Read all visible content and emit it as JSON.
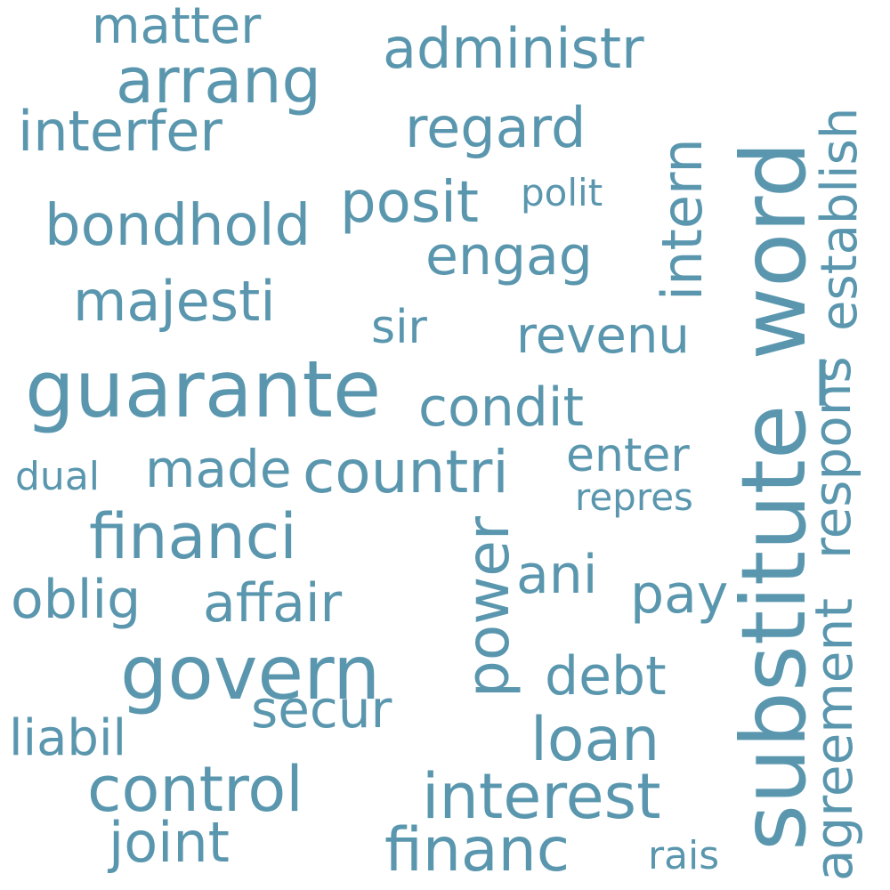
{
  "palette": {
    "word_color": "#5a97ae",
    "background": "#ffffff"
  },
  "words": {
    "matter": "matter",
    "arrang": "arrang",
    "administr": "administr",
    "interfer": "interfer",
    "regard": "regard",
    "intern": "intern",
    "substitute_word": "substitute_word",
    "establish": "establish",
    "bondhold": "bondhold",
    "posit": "posit",
    "polit": "polit",
    "engag": "engag",
    "majesti": "majesti",
    "sir": "sir",
    "revenu": "revenu",
    "guarante": "guarante",
    "condit": "condit",
    "respons": "respons",
    "dual": "dual",
    "made": "made",
    "countri": "countri",
    "enter": "enter",
    "repres": "repres",
    "financi": "financi",
    "power": "power",
    "ani": "ani",
    "oblig": "oblig",
    "affair": "affair",
    "pay": "pay",
    "agreement": "agreement",
    "govern": "govern",
    "debt": "debt",
    "secur": "secur",
    "liabil": "liabil",
    "loan": "loan",
    "control": "control",
    "interest": "interest",
    "joint": "joint",
    "financ": "financ",
    "rais": "rais"
  }
}
